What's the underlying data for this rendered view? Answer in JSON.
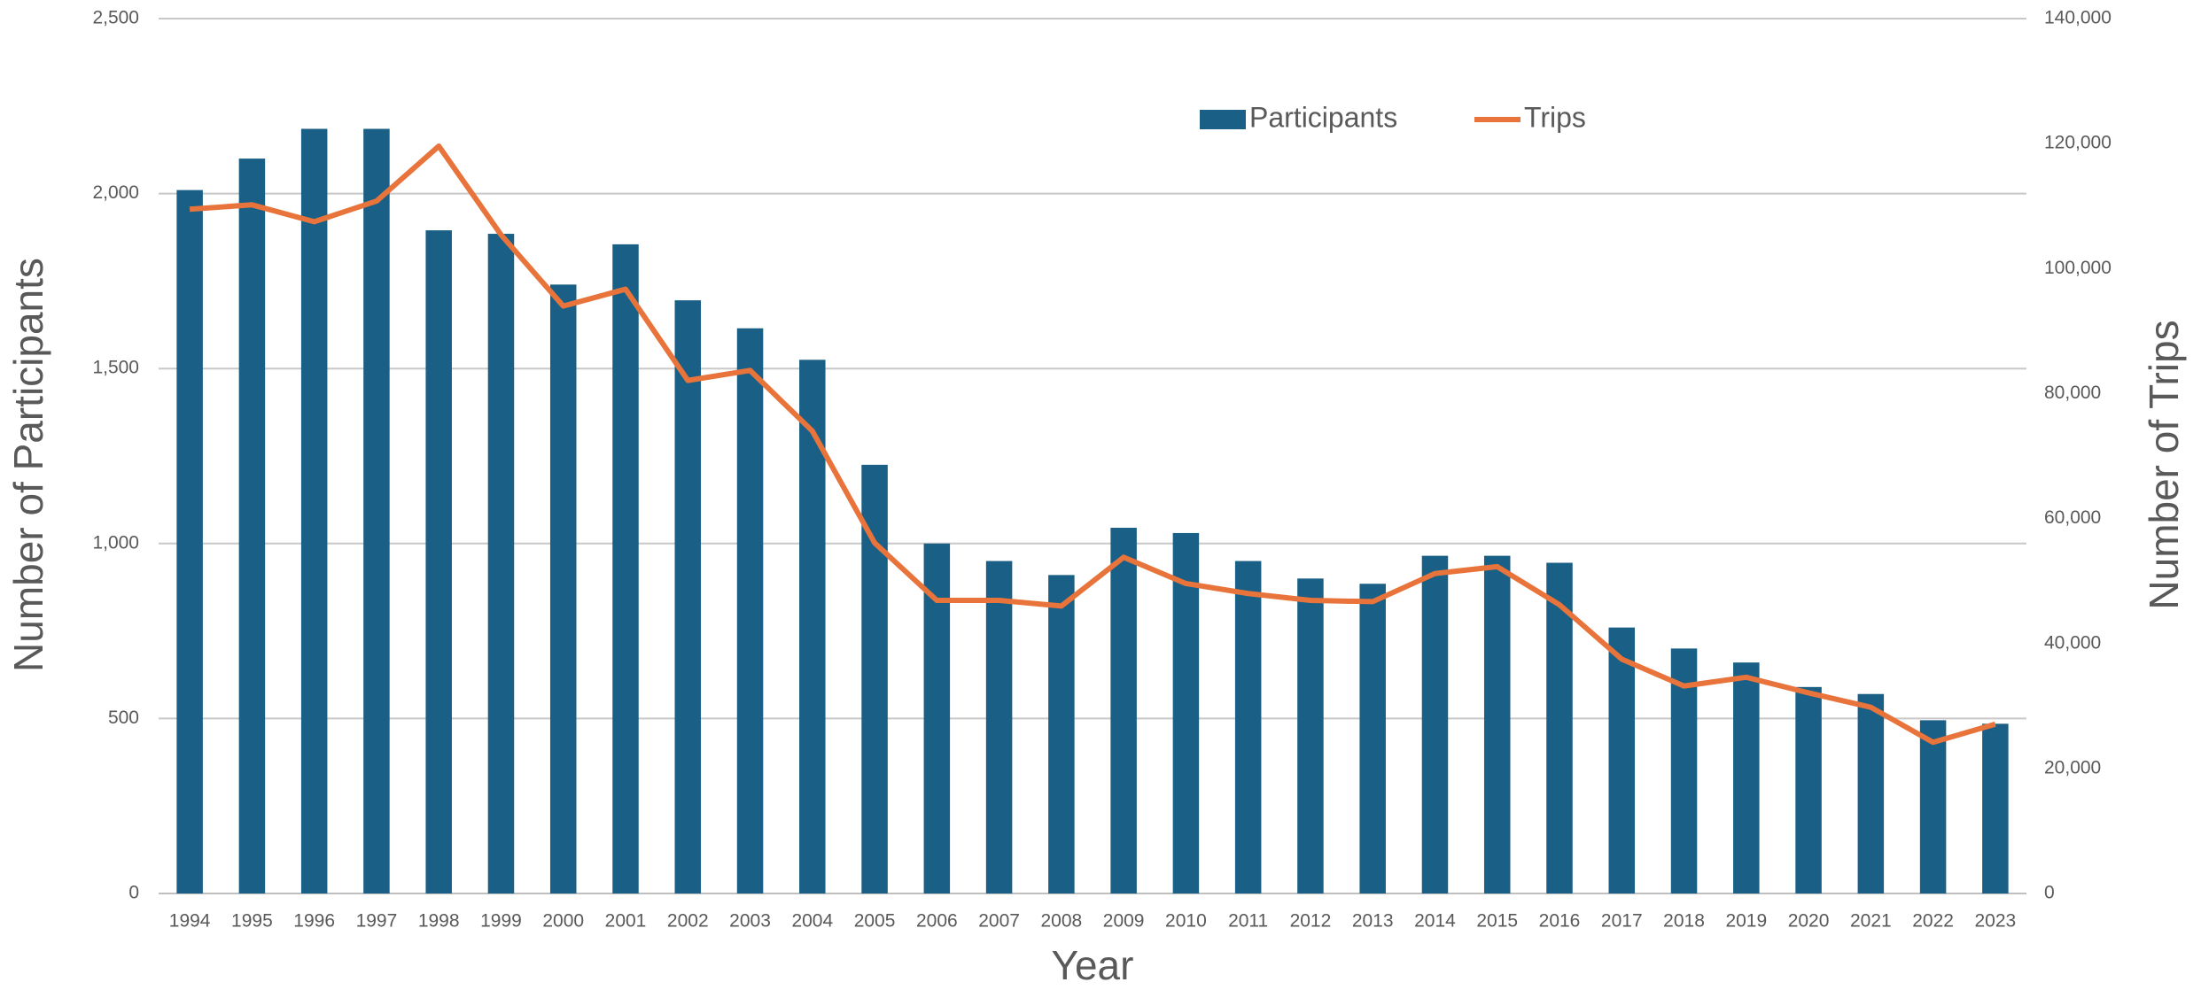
{
  "chart_data": {
    "type": "bar",
    "x_label": "Year",
    "y_label": "Number of Participants",
    "y2_label": "Number of Trips",
    "categories": [
      "1994",
      "1995",
      "1996",
      "1997",
      "1998",
      "1999",
      "2000",
      "2001",
      "2002",
      "2003",
      "2004",
      "2005",
      "2006",
      "2007",
      "2008",
      "2009",
      "2010",
      "2011",
      "2012",
      "2013",
      "2014",
      "2015",
      "2016",
      "2017",
      "2018",
      "2019",
      "2020",
      "2021",
      "2022",
      "2023"
    ],
    "series": [
      {
        "name": "Participants",
        "type": "bar",
        "color": "#1a5f85",
        "values": [
          2010,
          2100,
          2185,
          2185,
          1895,
          1885,
          1740,
          1855,
          1695,
          1615,
          1525,
          1225,
          1000,
          950,
          910,
          1045,
          1030,
          950,
          900,
          885,
          965,
          965,
          945,
          760,
          700,
          660,
          590,
          570,
          495,
          485
        ]
      },
      {
        "name": "Trips",
        "type": "line",
        "axis": "y2",
        "color": "#e8743b",
        "values": [
          109500,
          110200,
          107500,
          110800,
          119600,
          105400,
          94000,
          96700,
          82100,
          83700,
          74000,
          56100,
          46900,
          46900,
          46000,
          53800,
          49600,
          48000,
          46900,
          46700,
          51200,
          52300,
          46200,
          37500,
          33200,
          34600,
          32100,
          29800,
          24200,
          27100
        ]
      }
    ],
    "ylim": [
      0,
      2500
    ],
    "yticks": [
      0,
      500,
      {
        "value": 1000,
        "label": "1,000"
      },
      {
        "value": 1500,
        "label": "1,500"
      },
      {
        "value": 2000,
        "label": "2,000"
      },
      {
        "value": 2500,
        "label": "2,500"
      }
    ],
    "y2lim": [
      0,
      140000
    ],
    "y2ticks": [
      0,
      {
        "value": 20000,
        "label": "20,000"
      },
      {
        "value": 40000,
        "label": "40,000"
      },
      {
        "value": 60000,
        "label": "60,000"
      },
      {
        "value": 80000,
        "label": "80,000"
      },
      {
        "value": 100000,
        "label": "100,000"
      },
      {
        "value": 120000,
        "label": "120,000"
      },
      {
        "value": 140000,
        "label": "140,000"
      }
    ],
    "grid": true,
    "legend": "top"
  }
}
